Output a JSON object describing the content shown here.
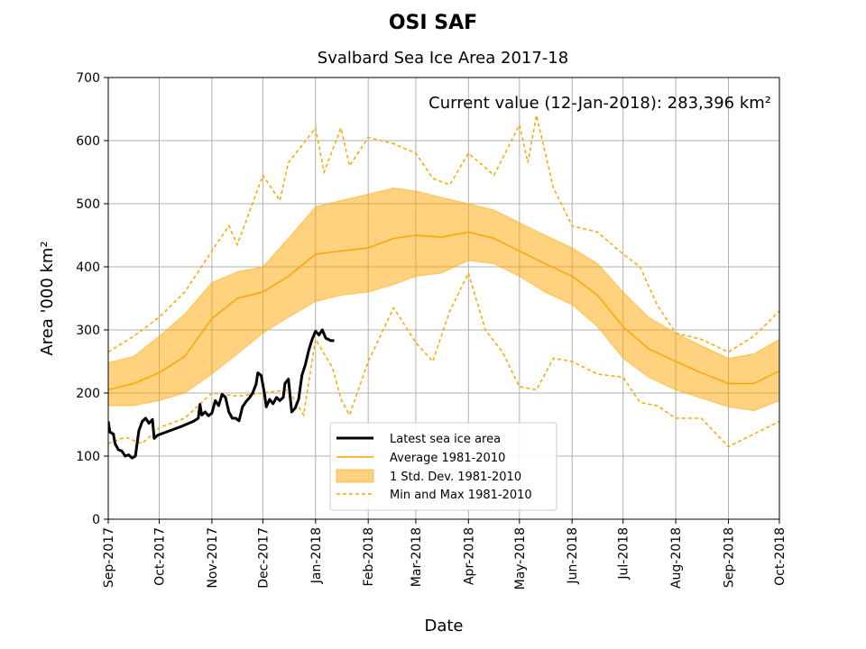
{
  "chart_data": {
    "type": "line",
    "title": "OSI SAF",
    "subtitle": "Svalbard Sea Ice Area 2017-18",
    "annotation": "Current value (12-Jan-2018): 283,396 km²",
    "xlabel": "Date",
    "ylabel": "Area '000 km²",
    "ylim": [
      0,
      700
    ],
    "xlim": [
      "2017-09-01",
      "2018-10-01"
    ],
    "x_scale": "date",
    "grid": true,
    "legend_position": "lower-center",
    "colors": {
      "latest": "#000000",
      "average": "#FFA500",
      "std_band": "#FFA500",
      "minmax": "#FFA500"
    },
    "y_ticks": [
      0,
      100,
      200,
      300,
      400,
      500,
      600,
      700
    ],
    "x_ticks": [
      {
        "date": "2017-09-01",
        "label": "Sep-2017"
      },
      {
        "date": "2017-10-01",
        "label": "Oct-2017"
      },
      {
        "date": "2017-11-01",
        "label": "Nov-2017"
      },
      {
        "date": "2017-12-01",
        "label": "Dec-2017"
      },
      {
        "date": "2018-01-01",
        "label": "Jan-2018"
      },
      {
        "date": "2018-02-01",
        "label": "Feb-2018"
      },
      {
        "date": "2018-03-01",
        "label": "Mar-2018"
      },
      {
        "date": "2018-04-01",
        "label": "Apr-2018"
      },
      {
        "date": "2018-05-01",
        "label": "May-2018"
      },
      {
        "date": "2018-06-01",
        "label": "Jun-2018"
      },
      {
        "date": "2018-07-01",
        "label": "Jul-2018"
      },
      {
        "date": "2018-08-01",
        "label": "Aug-2018"
      },
      {
        "date": "2018-09-01",
        "label": "Sep-2018"
      },
      {
        "date": "2018-10-01",
        "label": "Oct-2018"
      }
    ],
    "series": [
      {
        "name": "Latest sea ice area",
        "style": "solid-thick",
        "points": [
          [
            "2017-09-01",
            155
          ],
          [
            "2017-09-02",
            138
          ],
          [
            "2017-09-04",
            135
          ],
          [
            "2017-09-05",
            120
          ],
          [
            "2017-09-07",
            110
          ],
          [
            "2017-09-09",
            108
          ],
          [
            "2017-09-11",
            100
          ],
          [
            "2017-09-13",
            102
          ],
          [
            "2017-09-15",
            97
          ],
          [
            "2017-09-17",
            100
          ],
          [
            "2017-09-19",
            140
          ],
          [
            "2017-09-21",
            155
          ],
          [
            "2017-09-23",
            160
          ],
          [
            "2017-09-25",
            152
          ],
          [
            "2017-09-27",
            158
          ],
          [
            "2017-09-28",
            128
          ],
          [
            "2017-09-30",
            133
          ],
          [
            "2017-10-07",
            140
          ],
          [
            "2017-10-14",
            147
          ],
          [
            "2017-10-21",
            155
          ],
          [
            "2017-10-24",
            160
          ],
          [
            "2017-10-25",
            182
          ],
          [
            "2017-10-26",
            165
          ],
          [
            "2017-10-28",
            170
          ],
          [
            "2017-10-30",
            164
          ],
          [
            "2017-11-01",
            168
          ],
          [
            "2017-11-03",
            188
          ],
          [
            "2017-11-05",
            180
          ],
          [
            "2017-11-07",
            198
          ],
          [
            "2017-11-09",
            193
          ],
          [
            "2017-11-11",
            170
          ],
          [
            "2017-11-13",
            160
          ],
          [
            "2017-11-15",
            160
          ],
          [
            "2017-11-17",
            156
          ],
          [
            "2017-11-19",
            178
          ],
          [
            "2017-11-21",
            186
          ],
          [
            "2017-11-23",
            192
          ],
          [
            "2017-11-25",
            200
          ],
          [
            "2017-11-27",
            214
          ],
          [
            "2017-11-28",
            232
          ],
          [
            "2017-11-30",
            228
          ],
          [
            "2017-12-02",
            198
          ],
          [
            "2017-12-03",
            178
          ],
          [
            "2017-12-05",
            190
          ],
          [
            "2017-12-07",
            183
          ],
          [
            "2017-12-09",
            193
          ],
          [
            "2017-12-11",
            188
          ],
          [
            "2017-12-13",
            193
          ],
          [
            "2017-12-14",
            215
          ],
          [
            "2017-12-16",
            222
          ],
          [
            "2017-12-18",
            170
          ],
          [
            "2017-12-20",
            176
          ],
          [
            "2017-12-22",
            190
          ],
          [
            "2017-12-24",
            228
          ],
          [
            "2017-12-26",
            245
          ],
          [
            "2017-12-28",
            268
          ],
          [
            "2017-12-30",
            285
          ],
          [
            "2018-01-01",
            298
          ],
          [
            "2018-01-03",
            292
          ],
          [
            "2018-01-05",
            300
          ],
          [
            "2018-01-07",
            287
          ],
          [
            "2018-01-10",
            283
          ],
          [
            "2018-01-12",
            283
          ]
        ]
      },
      {
        "name": "Average 1981-2010",
        "style": "solid-thin",
        "points": [
          [
            "2017-09-01",
            205
          ],
          [
            "2017-09-16",
            215
          ],
          [
            "2017-10-01",
            232
          ],
          [
            "2017-10-16",
            258
          ],
          [
            "2017-11-01",
            318
          ],
          [
            "2017-11-16",
            350
          ],
          [
            "2017-12-01",
            360
          ],
          [
            "2017-12-16",
            385
          ],
          [
            "2018-01-01",
            420
          ],
          [
            "2018-01-16",
            425
          ],
          [
            "2018-02-01",
            430
          ],
          [
            "2018-02-16",
            445
          ],
          [
            "2018-03-01",
            450
          ],
          [
            "2018-03-16",
            447
          ],
          [
            "2018-04-01",
            455
          ],
          [
            "2018-04-16",
            445
          ],
          [
            "2018-05-01",
            425
          ],
          [
            "2018-05-16",
            405
          ],
          [
            "2018-06-01",
            385
          ],
          [
            "2018-06-16",
            355
          ],
          [
            "2018-07-01",
            305
          ],
          [
            "2018-07-16",
            270
          ],
          [
            "2018-08-01",
            250
          ],
          [
            "2018-08-16",
            232
          ],
          [
            "2018-09-01",
            215
          ],
          [
            "2018-09-16",
            215
          ],
          [
            "2018-10-01",
            235
          ]
        ]
      },
      {
        "name": "1 Std. Dev. 1981-2010",
        "style": "band",
        "upper": [
          [
            "2017-09-01",
            248
          ],
          [
            "2017-09-16",
            258
          ],
          [
            "2017-10-01",
            290
          ],
          [
            "2017-10-16",
            325
          ],
          [
            "2017-11-01",
            375
          ],
          [
            "2017-11-16",
            392
          ],
          [
            "2017-12-01",
            400
          ],
          [
            "2017-12-16",
            445
          ],
          [
            "2018-01-01",
            495
          ],
          [
            "2018-01-16",
            505
          ],
          [
            "2018-02-01",
            515
          ],
          [
            "2018-02-16",
            525
          ],
          [
            "2018-03-01",
            520
          ],
          [
            "2018-03-16",
            510
          ],
          [
            "2018-04-01",
            500
          ],
          [
            "2018-04-16",
            490
          ],
          [
            "2018-05-01",
            470
          ],
          [
            "2018-05-16",
            450
          ],
          [
            "2018-06-01",
            430
          ],
          [
            "2018-06-16",
            405
          ],
          [
            "2018-07-01",
            360
          ],
          [
            "2018-07-16",
            320
          ],
          [
            "2018-08-01",
            295
          ],
          [
            "2018-08-16",
            275
          ],
          [
            "2018-09-01",
            255
          ],
          [
            "2018-09-16",
            262
          ],
          [
            "2018-10-01",
            285
          ]
        ],
        "lower": [
          [
            "2017-09-01",
            180
          ],
          [
            "2017-09-16",
            180
          ],
          [
            "2017-10-01",
            188
          ],
          [
            "2017-10-16",
            200
          ],
          [
            "2017-11-01",
            230
          ],
          [
            "2017-11-16",
            262
          ],
          [
            "2017-12-01",
            295
          ],
          [
            "2017-12-16",
            320
          ],
          [
            "2018-01-01",
            345
          ],
          [
            "2018-01-16",
            355
          ],
          [
            "2018-02-01",
            360
          ],
          [
            "2018-02-16",
            372
          ],
          [
            "2018-03-01",
            385
          ],
          [
            "2018-03-16",
            390
          ],
          [
            "2018-04-01",
            410
          ],
          [
            "2018-04-16",
            405
          ],
          [
            "2018-05-01",
            385
          ],
          [
            "2018-05-16",
            360
          ],
          [
            "2018-06-01",
            340
          ],
          [
            "2018-06-16",
            305
          ],
          [
            "2018-07-01",
            255
          ],
          [
            "2018-07-16",
            225
          ],
          [
            "2018-08-01",
            205
          ],
          [
            "2018-08-16",
            192
          ],
          [
            "2018-09-01",
            178
          ],
          [
            "2018-09-16",
            172
          ],
          [
            "2018-10-01",
            188
          ]
        ]
      },
      {
        "name": "Min and Max 1981-2010",
        "style": "dashed",
        "max": [
          [
            "2017-09-01",
            265
          ],
          [
            "2017-09-16",
            290
          ],
          [
            "2017-10-01",
            320
          ],
          [
            "2017-10-16",
            360
          ],
          [
            "2017-11-01",
            425
          ],
          [
            "2017-11-11",
            465
          ],
          [
            "2017-11-16",
            435
          ],
          [
            "2017-12-01",
            545
          ],
          [
            "2017-12-11",
            505
          ],
          [
            "2017-12-16",
            565
          ],
          [
            "2018-01-01",
            620
          ],
          [
            "2018-01-06",
            550
          ],
          [
            "2018-01-16",
            620
          ],
          [
            "2018-01-21",
            560
          ],
          [
            "2018-02-01",
            605
          ],
          [
            "2018-02-16",
            595
          ],
          [
            "2018-03-01",
            580
          ],
          [
            "2018-03-11",
            540
          ],
          [
            "2018-03-21",
            530
          ],
          [
            "2018-04-01",
            580
          ],
          [
            "2018-04-16",
            545
          ],
          [
            "2018-05-01",
            625
          ],
          [
            "2018-05-06",
            565
          ],
          [
            "2018-05-11",
            640
          ],
          [
            "2018-05-21",
            525
          ],
          [
            "2018-06-01",
            465
          ],
          [
            "2018-06-16",
            455
          ],
          [
            "2018-07-01",
            420
          ],
          [
            "2018-07-11",
            400
          ],
          [
            "2018-07-21",
            340
          ],
          [
            "2018-08-01",
            295
          ],
          [
            "2018-08-16",
            285
          ],
          [
            "2018-09-01",
            265
          ],
          [
            "2018-09-16",
            290
          ],
          [
            "2018-10-01",
            330
          ]
        ],
        "min": [
          [
            "2017-09-01",
            120
          ],
          [
            "2017-09-11",
            130
          ],
          [
            "2017-09-21",
            120
          ],
          [
            "2017-10-01",
            145
          ],
          [
            "2017-10-16",
            160
          ],
          [
            "2017-11-01",
            200
          ],
          [
            "2017-11-16",
            195
          ],
          [
            "2017-12-01",
            200
          ],
          [
            "2017-12-16",
            205
          ],
          [
            "2017-12-25",
            165
          ],
          [
            "2018-01-01",
            285
          ],
          [
            "2018-01-11",
            240
          ],
          [
            "2018-01-16",
            190
          ],
          [
            "2018-01-21",
            165
          ],
          [
            "2018-02-01",
            250
          ],
          [
            "2018-02-16",
            335
          ],
          [
            "2018-03-01",
            280
          ],
          [
            "2018-03-11",
            250
          ],
          [
            "2018-03-21",
            330
          ],
          [
            "2018-04-01",
            390
          ],
          [
            "2018-04-11",
            300
          ],
          [
            "2018-04-21",
            265
          ],
          [
            "2018-05-01",
            210
          ],
          [
            "2018-05-11",
            205
          ],
          [
            "2018-05-21",
            255
          ],
          [
            "2018-06-01",
            250
          ],
          [
            "2018-06-16",
            230
          ],
          [
            "2018-07-01",
            225
          ],
          [
            "2018-07-11",
            185
          ],
          [
            "2018-07-21",
            180
          ],
          [
            "2018-08-01",
            160
          ],
          [
            "2018-08-16",
            160
          ],
          [
            "2018-09-01",
            115
          ],
          [
            "2018-09-16",
            135
          ],
          [
            "2018-10-01",
            155
          ]
        ]
      }
    ]
  }
}
